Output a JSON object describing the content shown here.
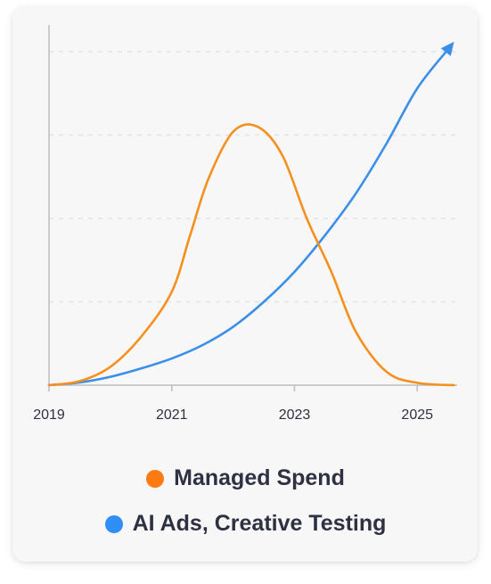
{
  "chart_data": {
    "type": "line",
    "x_ticks": [
      "2019",
      "2021",
      "2023",
      "2025"
    ],
    "xlim": [
      2019,
      2025.65
    ],
    "ylim": [
      0,
      100
    ],
    "grid": true,
    "legend_position": "bottom",
    "series": [
      {
        "name": "Managed Spend",
        "color": "#f5901e",
        "legend_color": "#ff7a12",
        "x": [
          2019,
          2019.5,
          2020,
          2020.5,
          2021,
          2021.3,
          2021.6,
          2022,
          2022.4,
          2022.8,
          2023.2,
          2023.6,
          2024,
          2024.5,
          2025,
          2025.6
        ],
        "y": [
          0,
          1.2,
          5.5,
          14.5,
          28,
          45,
          62,
          76,
          77.5,
          69,
          50,
          34,
          16,
          4,
          0.7,
          0
        ]
      },
      {
        "name": "AI Ads, Creative Testing",
        "color": "#3b8fe8",
        "legend_color": "#2f8ff5",
        "x": [
          2019,
          2019.5,
          2020,
          2020.5,
          2021,
          2021.5,
          2022,
          2022.5,
          2023,
          2023.5,
          2024,
          2024.5,
          2025,
          2025.6
        ],
        "y": [
          0,
          0.8,
          2.5,
          5,
          8,
          12,
          17.5,
          25,
          34,
          45,
          57.5,
          72.5,
          89,
          103
        ]
      }
    ]
  }
}
